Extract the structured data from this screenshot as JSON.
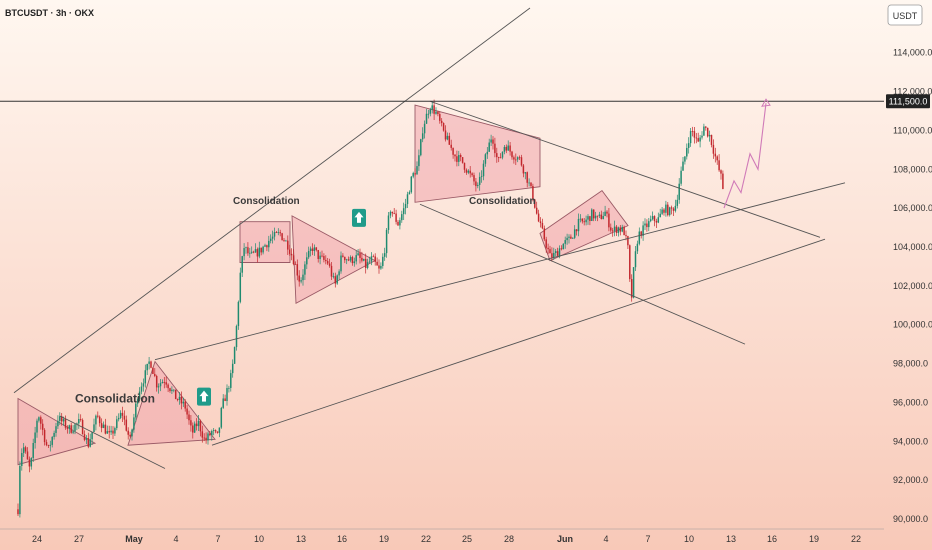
{
  "header": {
    "symbol": "BTCUSDT · 3h · OKX",
    "currency": "USDT"
  },
  "colors": {
    "bg_top": "#fff7f0",
    "bg_bottom": "#f8c9b8",
    "bull": "#1f8a6f",
    "bear": "#c2272d",
    "line": "#555555",
    "zone_fill": "#f1a5ad",
    "zone_stroke": "#9a5a66",
    "projection": "#d07ab8",
    "arrow_bg": "#1f9b8a"
  },
  "chart_data": {
    "type": "candlestick",
    "x_axis": {
      "labels": [
        "24",
        "27",
        "May",
        "4",
        "7",
        "10",
        "13",
        "16",
        "19",
        "22",
        "25",
        "28",
        "Jun",
        "4",
        "7",
        "10",
        "13",
        "16",
        "19",
        "22"
      ],
      "bold_labels": [
        "May",
        "Jun"
      ]
    },
    "y_axis": {
      "range": [
        89500,
        116500
      ],
      "ticks": [
        90000,
        92000,
        94000,
        96000,
        98000,
        100000,
        102000,
        104000,
        106000,
        108000,
        110000,
        112000,
        114000
      ],
      "tick_labels": [
        "90,000.0",
        "92,000.0",
        "94,000.0",
        "96,000.0",
        "98,000.0",
        "100,000.0",
        "102,000.0",
        "104,000.0",
        "106,000.0",
        "108,000.0",
        "110,000.0",
        "112,000.0",
        "114,000.0"
      ]
    },
    "horizontal_level": {
      "value": 111500,
      "label": "111,500.0"
    },
    "path_points": [
      [
        18,
        90500
      ],
      [
        20,
        93000
      ],
      [
        23,
        93800
      ],
      [
        30,
        92500
      ],
      [
        38,
        95500
      ],
      [
        48,
        93500
      ],
      [
        58,
        95200
      ],
      [
        70,
        94600
      ],
      [
        80,
        95000
      ],
      [
        88,
        93800
      ],
      [
        97,
        95300
      ],
      [
        110,
        94200
      ],
      [
        122,
        95500
      ],
      [
        130,
        94000
      ],
      [
        138,
        96500
      ],
      [
        145,
        97400
      ],
      [
        150,
        98200
      ],
      [
        157,
        96900
      ],
      [
        165,
        97200
      ],
      [
        175,
        96300
      ],
      [
        185,
        95800
      ],
      [
        192,
        94400
      ],
      [
        198,
        95000
      ],
      [
        205,
        94000
      ],
      [
        212,
        94500
      ],
      [
        218,
        94200
      ],
      [
        222,
        95800
      ],
      [
        226,
        96400
      ],
      [
        232,
        97500
      ],
      [
        236,
        99500
      ],
      [
        240,
        102500
      ],
      [
        244,
        104000
      ],
      [
        250,
        103500
      ],
      [
        260,
        103800
      ],
      [
        270,
        104400
      ],
      [
        280,
        104700
      ],
      [
        288,
        104100
      ],
      [
        294,
        103300
      ],
      [
        300,
        102200
      ],
      [
        306,
        103200
      ],
      [
        312,
        104000
      ],
      [
        320,
        103400
      ],
      [
        328,
        103200
      ],
      [
        335,
        102000
      ],
      [
        342,
        103600
      ],
      [
        350,
        103300
      ],
      [
        358,
        103500
      ],
      [
        366,
        103000
      ],
      [
        372,
        103400
      ],
      [
        380,
        102700
      ],
      [
        385,
        104000
      ],
      [
        390,
        106000
      ],
      [
        398,
        105200
      ],
      [
        405,
        106100
      ],
      [
        412,
        107600
      ],
      [
        418,
        108200
      ],
      [
        423,
        110200
      ],
      [
        430,
        111300
      ],
      [
        436,
        110900
      ],
      [
        442,
        110100
      ],
      [
        448,
        109400
      ],
      [
        455,
        108700
      ],
      [
        462,
        108400
      ],
      [
        470,
        107700
      ],
      [
        478,
        107000
      ],
      [
        485,
        108500
      ],
      [
        492,
        109800
      ],
      [
        498,
        108300
      ],
      [
        505,
        109300
      ],
      [
        512,
        108800
      ],
      [
        520,
        108500
      ],
      [
        528,
        107400
      ],
      [
        533,
        106600
      ],
      [
        538,
        105400
      ],
      [
        544,
        104500
      ],
      [
        550,
        103500
      ],
      [
        555,
        103600
      ],
      [
        562,
        104100
      ],
      [
        570,
        104400
      ],
      [
        578,
        105200
      ],
      [
        585,
        105300
      ],
      [
        592,
        105700
      ],
      [
        598,
        105400
      ],
      [
        605,
        105800
      ],
      [
        612,
        104800
      ],
      [
        618,
        105000
      ],
      [
        624,
        104800
      ],
      [
        628,
        103900
      ],
      [
        631,
        101000
      ],
      [
        634,
        103000
      ],
      [
        638,
        104600
      ],
      [
        645,
        105000
      ],
      [
        652,
        105400
      ],
      [
        658,
        105400
      ],
      [
        664,
        106000
      ],
      [
        670,
        105800
      ],
      [
        676,
        106200
      ],
      [
        680,
        107600
      ],
      [
        684,
        108400
      ],
      [
        688,
        109500
      ],
      [
        692,
        110000
      ],
      [
        698,
        109300
      ],
      [
        704,
        110200
      ],
      [
        710,
        109700
      ],
      [
        716,
        108500
      ],
      [
        721,
        107600
      ],
      [
        724,
        106700
      ]
    ],
    "drawings": {
      "trendlines": [
        {
          "from": [
            14,
            96500
          ],
          "to": [
            530,
            116300
          ]
        },
        {
          "from": [
            60,
            95300
          ],
          "to": [
            165,
            92600
          ]
        },
        {
          "from": [
            155,
            98200
          ],
          "to": [
            845,
            107300
          ]
        },
        {
          "from": [
            212,
            93800
          ],
          "to": [
            825,
            104400
          ]
        },
        {
          "from": [
            430,
            111500
          ],
          "to": [
            820,
            104500
          ]
        },
        {
          "from": [
            420,
            106200
          ],
          "to": [
            745,
            99000
          ]
        }
      ],
      "projection": [
        [
          724,
          106000
        ],
        [
          734,
          107400
        ],
        [
          741,
          106800
        ],
        [
          750,
          108800
        ],
        [
          758,
          108000
        ],
        [
          766,
          111400
        ]
      ],
      "zones": [
        {
          "kind": "triangle",
          "points": [
            [
              18,
              96200
            ],
            [
              95,
              93900
            ],
            [
              18,
              92800
            ]
          ]
        },
        {
          "kind": "triangle",
          "points": [
            [
              128,
              93800
            ],
            [
              155,
              98100
            ],
            [
              215,
              94100
            ]
          ]
        },
        {
          "kind": "rect",
          "points": [
            [
              240,
              105300
            ],
            [
              290,
              105300
            ],
            [
              290,
              103200
            ],
            [
              240,
              103200
            ]
          ]
        },
        {
          "kind": "triangle",
          "points": [
            [
              292,
              105600
            ],
            [
              375,
              103300
            ],
            [
              296,
              101100
            ]
          ]
        },
        {
          "kind": "rect",
          "points": [
            [
              415,
              111300
            ],
            [
              540,
              109600
            ],
            [
              540,
              107100
            ],
            [
              415,
              106300
            ]
          ]
        },
        {
          "kind": "triangle",
          "points": [
            [
              540,
              104700
            ],
            [
              602,
              106900
            ],
            [
              628,
              105100
            ],
            [
              550,
              103300
            ]
          ]
        }
      ],
      "annotations": [
        {
          "text": "Consolidation",
          "at": [
            75,
            96000
          ],
          "size": 12
        },
        {
          "text": "Consolidation",
          "at": [
            233,
            106200
          ],
          "size": 10
        },
        {
          "text": "Consolidation",
          "at": [
            469,
            106200
          ],
          "size": 10
        }
      ],
      "arrows": [
        {
          "at": [
            204,
            96300
          ]
        },
        {
          "at": [
            359,
            105500
          ]
        }
      ]
    }
  }
}
